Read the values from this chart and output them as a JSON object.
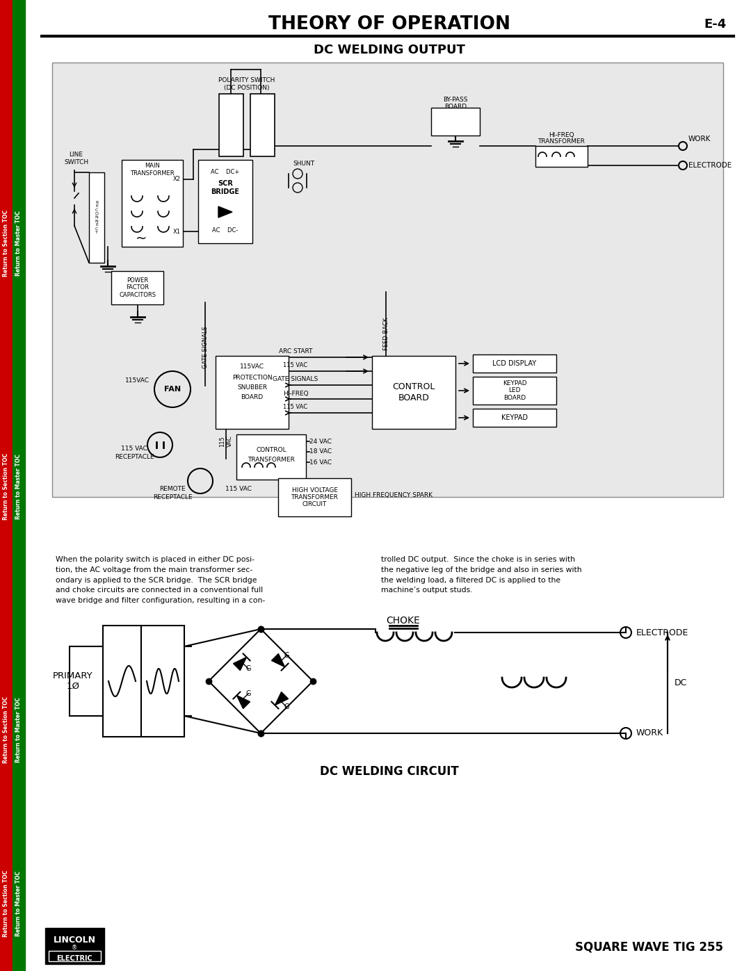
{
  "title": "THEORY OF OPERATION",
  "page_num": "E-4",
  "subtitle": "DC WELDING OUTPUT",
  "footer_right": "SQUARE WAVE TIG 255",
  "sidebar_left_text": "Return to Section TOC",
  "sidebar_right_text": "Return to Master TOC",
  "sidebar_left_color": "#cc0000",
  "sidebar_right_color": "#007700",
  "bg_color": "#ffffff",
  "diagram_bg": "#e8e8e8",
  "body_text_left": "When the polarity switch is placed in either DC posi-\ntion, the AC voltage from the main transformer sec-\nondary is applied to the SCR bridge.  The SCR bridge\nand choke circuits are connected in a conventional full\nwave bridge and filter configuration, resulting in a con-",
  "body_text_right": "trolled DC output.  Since the choke is in series with\nthe negative leg of the bridge and also in series with\nthe welding load, a filtered DC is applied to the\nmachine’s output studs.",
  "dc_circuit_title": "DC WELDING CIRCUIT"
}
